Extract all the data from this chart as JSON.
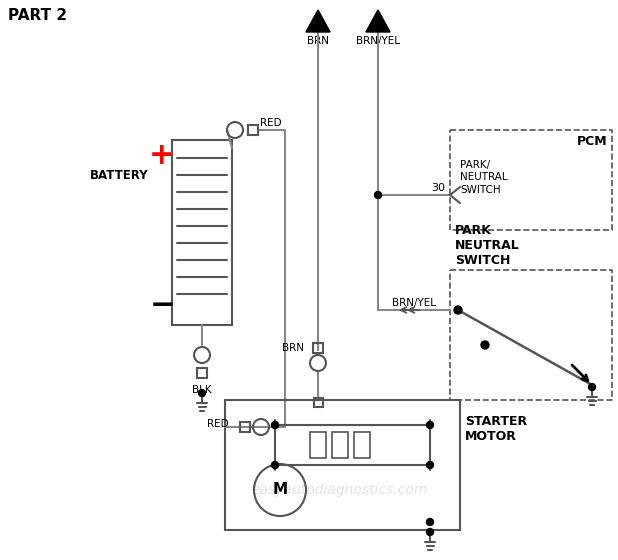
{
  "title": "PART 2",
  "bg_color": "#ffffff",
  "wire_color": "#888888",
  "wire_color_dark": "#555555",
  "text_color": "#000000",
  "red_color": "#cc0000",
  "watermark": "easyautodiagnostics.com",
  "watermark_color": "#cccccc",
  "label_BRN": "BRN",
  "label_BRNYEL": "BRN/YEL",
  "label_RED": "RED",
  "label_BLK": "BLK",
  "label_BATTERY": "BATTERY",
  "label_STARTER_MOTOR": "STARTER\nMOTOR",
  "label_PCM": "PCM",
  "label_PARK_NEUTRAL_SWITCH_PCM": "PARK/\nNEUTRAL\nSWITCH",
  "label_PARK_NEUTRAL_SWITCH": "PARK\nNEUTRAL\nSWITCH",
  "label_30": "30"
}
